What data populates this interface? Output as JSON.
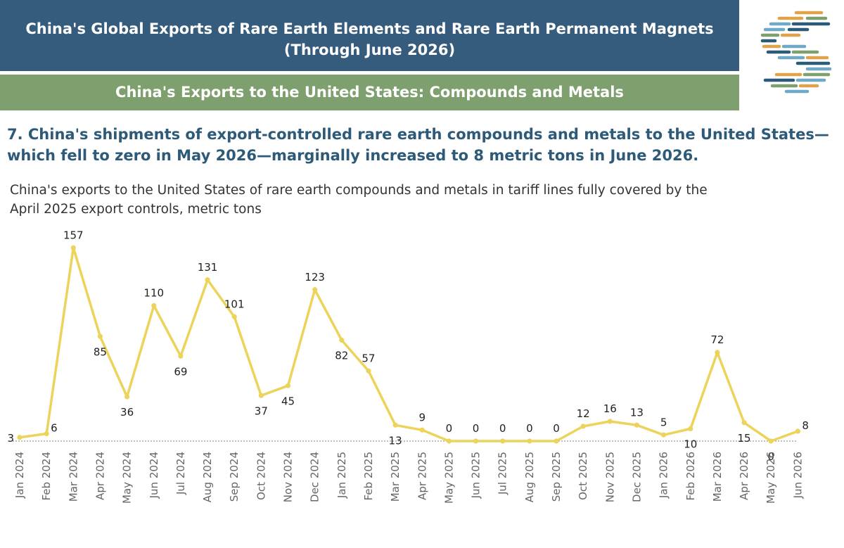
{
  "header": {
    "title": "China's Global Exports of Rare Earth Elements and Rare Earth Permanent Magnets",
    "subtitle": "(Through June 2026)"
  },
  "section": {
    "title": "China's Exports to the United States: Compounds and Metals"
  },
  "headline": {
    "text": "7. China's shipments of export-controlled rare earth compounds and metals to the United States—which fell to zero in May 2026—marginally increased to 8 metric tons in June 2026."
  },
  "chart_desc": {
    "line1": "China's exports to the United States of rare earth compounds and metals in tariff lines fully covered by the",
    "line2": "April 2025 export controls, metric tons"
  },
  "logo": {
    "icon": "stylized-s-logo-icon"
  },
  "colors": {
    "header_bg": "#355c7d",
    "section_bg": "#7ea06e",
    "headline_text": "#2d5a78",
    "series_line": "#ecd35a",
    "baseline": "#999999"
  },
  "chart_data": {
    "type": "line",
    "categories": [
      "Jan 2024",
      "Feb 2024",
      "Mar 2024",
      "Apr 2024",
      "May 2024",
      "Jun 2024",
      "Jul 2024",
      "Aug 2024",
      "Sep 2024",
      "Oct 2024",
      "Nov 2024",
      "Dec 2024",
      "Jan 2025",
      "Feb 2025",
      "Mar 2025",
      "Apr 2025",
      "May 2025",
      "Jun 2025",
      "Jul 2025",
      "Aug 2025",
      "Sep 2025",
      "Oct 2025",
      "Nov 2025",
      "Dec 2025",
      "Jan 2026",
      "Feb 2026",
      "Mar 2026",
      "Apr 2026",
      "May 2026",
      "Jun 2026"
    ],
    "series": [
      {
        "values": [
          3,
          6,
          157,
          85,
          36,
          110,
          69,
          131,
          101,
          37,
          45,
          123,
          82,
          57,
          13,
          9,
          0,
          0,
          0,
          0,
          0,
          12,
          16,
          13,
          5,
          10,
          72,
          15,
          0,
          8
        ]
      }
    ],
    "data_labels": [
      "3",
      "6",
      "157",
      "85",
      "36",
      "110",
      "69",
      "131",
      "101",
      "37",
      "45",
      "123",
      "82",
      "57",
      "13",
      "9",
      "0",
      "0",
      "0",
      "0",
      "0",
      "12",
      "16",
      "13",
      "5",
      "10",
      "72",
      "15",
      "0",
      "8"
    ],
    "label_placement": [
      "left",
      "right",
      "above",
      "below",
      "below",
      "above",
      "below",
      "above",
      "above",
      "below",
      "below",
      "above",
      "below",
      "above",
      "below",
      "above",
      "above",
      "above",
      "above",
      "above",
      "above",
      "above",
      "above",
      "above",
      "above",
      "below",
      "above",
      "below",
      "below",
      "right"
    ],
    "ylim": [
      0,
      160
    ],
    "grid": false,
    "baseline": "dotted at zero",
    "legend": "none",
    "xlabel": "",
    "ylabel": ""
  }
}
